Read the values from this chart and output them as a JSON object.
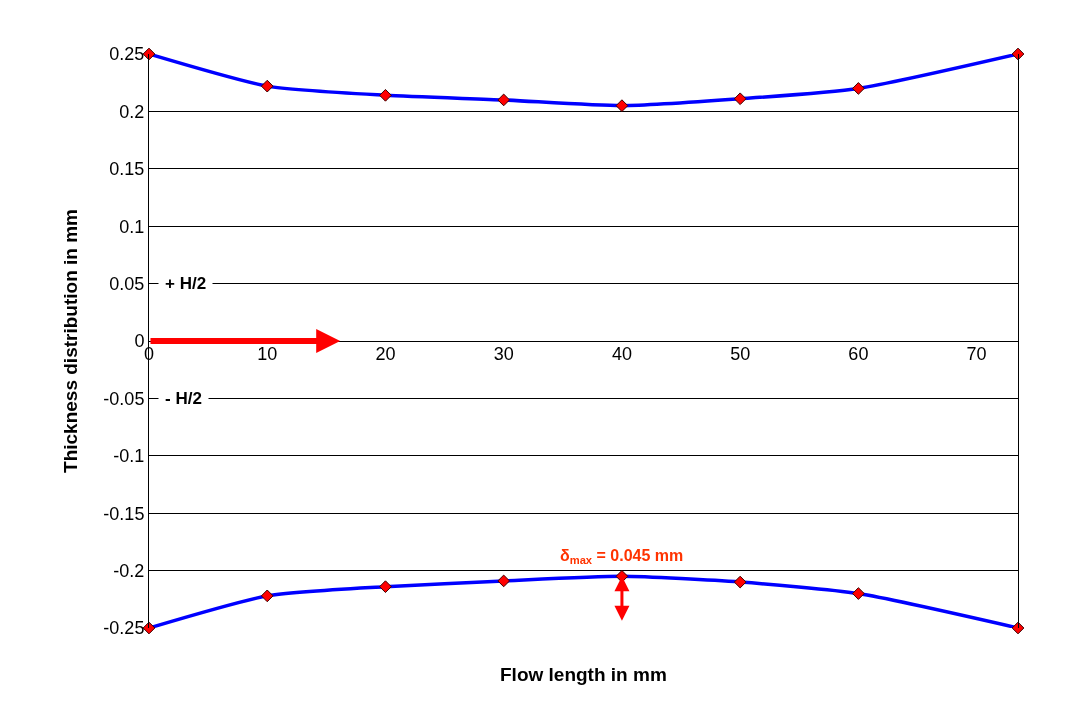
{
  "chart_data": {
    "type": "line",
    "xlabel": "Flow length in mm",
    "ylabel": "Thickness distribution in mm",
    "x": [
      0,
      10,
      20,
      30,
      40,
      50,
      60,
      73.5
    ],
    "series": [
      {
        "color": "#0000ff",
        "colors": [
          "#ff0000",
          "#ff0000",
          "#ff0000",
          "#ff0000",
          "#ff0000",
          "#ff0000",
          "#ff0000",
          "#ff0000"
        ],
        "values": [
          0.25,
          0.222,
          0.214,
          0.21,
          0.205,
          0.211,
          0.22,
          0.25
        ]
      },
      {
        "color": "#0000ff",
        "colors": [
          "#ff0000",
          "#ff0000",
          "#ff0000",
          "#ff0000",
          "#ff0000",
          "#ff0000",
          "#ff0000",
          "#ff0000"
        ],
        "values": [
          -0.25,
          -0.222,
          -0.214,
          -0.209,
          -0.205,
          -0.21,
          -0.22,
          -0.25
        ]
      }
    ],
    "xlim": [
      0,
      73.5
    ],
    "xticks": [
      0,
      10,
      20,
      30,
      40,
      50,
      60,
      70
    ],
    "ylim": [
      -0.25,
      0.25
    ],
    "yticks": [
      -0.25,
      -0.2,
      -0.15,
      -0.1,
      -0.05,
      0,
      0.05,
      0.1,
      0.15,
      0.2,
      0.25
    ],
    "grid": "y",
    "marker": "diamond",
    "line_style": "solid",
    "annotations": [
      "+ H/2",
      "- H/2",
      {
        "text": "δ$_{max}$ = 0.045 mm",
        "x": 40,
        "y": -0.205
      }
    ]
  }
}
